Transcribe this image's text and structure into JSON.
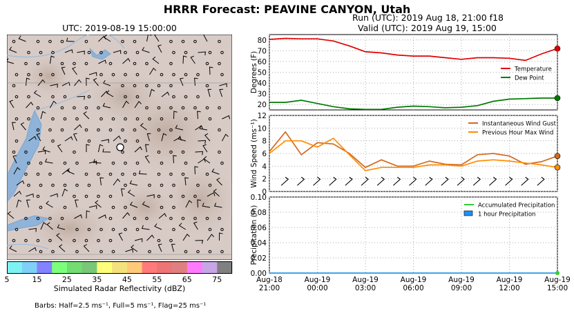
{
  "page": {
    "title": "HRRR Forecast: PEAVINE CANYON, Utah",
    "run_label": "Run (UTC): 2019 Aug 18, 21:00 f18",
    "valid_label": "Valid (UTC): 2019 Aug 19, 15:00",
    "map_title": "UTC: 2019-08-19 15:00:00",
    "colorbar_label": "Simulated Radar Reflectivity (dBZ)",
    "colorbar_ticks": [
      "5",
      "15",
      "25",
      "35",
      "45",
      "55",
      "65",
      "75"
    ],
    "colorbar_colors": [
      "#7ef2f2",
      "#7fcff7",
      "#8482ff",
      "#7cff7c",
      "#73dc73",
      "#78c878",
      "#ffff7a",
      "#f3e27c",
      "#ffc97a",
      "#ff7a7a",
      "#ee7575",
      "#df7f7f",
      "#ff7aff",
      "#c7a6e6",
      "#808080"
    ],
    "barbs_note": "Barbs: Half=2.5 ms⁻¹, Full=5 ms⁻¹, Flag=25 ms⁻¹"
  },
  "chart_data": [
    {
      "type": "line",
      "ylabel": "Degrees (F)",
      "ylim": [
        15,
        85
      ],
      "yticks": [
        20,
        30,
        40,
        50,
        60,
        70,
        80
      ],
      "grid": true,
      "legend_position": "right",
      "x": [
        "2019-08-18 21:00",
        "2019-08-18 22:00",
        "2019-08-18 23:00",
        "2019-08-19 00:00",
        "2019-08-19 01:00",
        "2019-08-19 02:00",
        "2019-08-19 03:00",
        "2019-08-19 04:00",
        "2019-08-19 05:00",
        "2019-08-19 06:00",
        "2019-08-19 07:00",
        "2019-08-19 08:00",
        "2019-08-19 09:00",
        "2019-08-19 10:00",
        "2019-08-19 11:00",
        "2019-08-19 12:00",
        "2019-08-19 13:00",
        "2019-08-19 14:00",
        "2019-08-19 15:00"
      ],
      "series": [
        {
          "name": "Temperature",
          "color": "#e00000",
          "values": [
            80.5,
            81.5,
            81,
            81,
            79,
            74.5,
            69,
            68,
            66,
            65,
            65,
            63.5,
            62,
            63.5,
            63.5,
            63,
            61,
            67,
            72
          ]
        },
        {
          "name": "Dew Point",
          "color": "#007a00",
          "values": [
            22,
            22,
            24,
            21,
            18,
            16,
            15.5,
            15.5,
            17.5,
            18.5,
            18,
            17,
            17.5,
            19,
            23,
            25,
            25.5,
            26,
            26
          ]
        }
      ]
    },
    {
      "type": "line",
      "ylabel": "Wind Speed (ms⁻¹)",
      "ylim": [
        0,
        12
      ],
      "yticks": [
        0,
        2,
        4,
        6,
        8,
        10,
        12
      ],
      "grid": true,
      "legend_position": "top-right",
      "x": [
        "2019-08-18 21:00",
        "2019-08-18 22:00",
        "2019-08-18 23:00",
        "2019-08-19 00:00",
        "2019-08-19 01:00",
        "2019-08-19 02:00",
        "2019-08-19 03:00",
        "2019-08-19 04:00",
        "2019-08-19 05:00",
        "2019-08-19 06:00",
        "2019-08-19 07:00",
        "2019-08-19 08:00",
        "2019-08-19 09:00",
        "2019-08-19 10:00",
        "2019-08-19 11:00",
        "2019-08-19 12:00",
        "2019-08-19 13:00",
        "2019-08-19 14:00",
        "2019-08-19 15:00"
      ],
      "series": [
        {
          "name": "Instantaneous Wind Gust",
          "color": "#d2691e",
          "values": [
            6.3,
            9.4,
            5.8,
            7.7,
            7.5,
            6,
            3.8,
            5,
            4,
            4,
            4.8,
            4.3,
            4.2,
            5.8,
            6,
            5.6,
            4.3,
            4.7,
            5.6
          ]
        },
        {
          "name": "Previous Hour Max Wind",
          "color": "#ff8c00",
          "values": [
            6,
            8,
            8,
            7,
            8.4,
            5.8,
            3.3,
            3.8,
            3.8,
            3.8,
            4.2,
            4.2,
            4,
            4.8,
            5,
            4.8,
            4.5,
            4.2,
            3.8
          ]
        }
      ]
    },
    {
      "type": "line",
      "ylabel": "Precipitation (in)",
      "ylim": [
        0,
        0.1
      ],
      "yticks": [
        "0.00",
        "0.02",
        "0.04",
        "0.06",
        "0.08",
        "0.10"
      ],
      "grid": true,
      "legend_position": "top-right",
      "x_tick_labels": [
        [
          "Aug-18",
          "21:00"
        ],
        [
          "Aug-19",
          "00:00"
        ],
        [
          "Aug-19",
          "03:00"
        ],
        [
          "Aug-19",
          "06:00"
        ],
        [
          "Aug-19",
          "09:00"
        ],
        [
          "Aug-19",
          "12:00"
        ],
        [
          "Aug-19",
          "15:00"
        ]
      ],
      "series": [
        {
          "name": "Accumulated Precipitation",
          "color": "#32cd32",
          "values": [
            0,
            0,
            0,
            0,
            0,
            0,
            0,
            0,
            0,
            0,
            0,
            0,
            0,
            0,
            0,
            0,
            0,
            0,
            0
          ]
        },
        {
          "name": "1 hour Precipitation",
          "color": "#1e90ff",
          "values": [
            0,
            0,
            0,
            0,
            0,
            0,
            0,
            0,
            0,
            0,
            0,
            0,
            0,
            0,
            0,
            0,
            0,
            0,
            0
          ]
        }
      ]
    }
  ]
}
